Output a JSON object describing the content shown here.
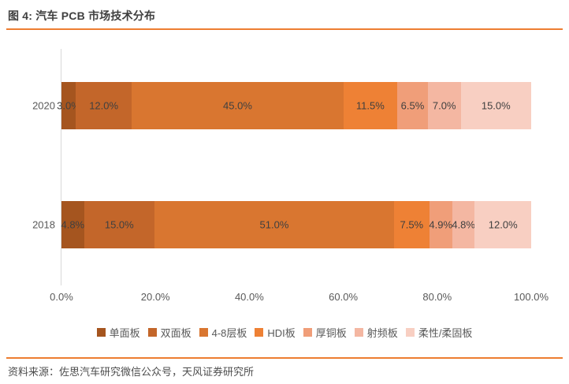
{
  "header": {
    "title": "图 4: 汽车 PCB 市场技术分布"
  },
  "footer": {
    "source": "资料来源：佐思汽车研究微信公众号，天风证券研究所"
  },
  "colors": {
    "accent_rule": "#ED7D31",
    "title_text": "#3F3F3F",
    "axis_line": "#D9D9D9",
    "axis_text": "#595959",
    "value_label_text": "#404040",
    "source_text": "#4D4D4D"
  },
  "chart_data": {
    "type": "bar",
    "stacked": true,
    "orientation": "horizontal",
    "categories": [
      "2020",
      "2018"
    ],
    "series": [
      {
        "name": "单面板",
        "color": "#A5551F",
        "values": [
          3.0,
          4.8
        ]
      },
      {
        "name": "双面板",
        "color": "#C3662A",
        "values": [
          12.0,
          15.0
        ]
      },
      {
        "name": "4-8层板",
        "color": "#D97630",
        "values": [
          45.0,
          51.0
        ]
      },
      {
        "name": "HDI板",
        "color": "#EE8135",
        "values": [
          11.5,
          7.5
        ]
      },
      {
        "name": "厚铜板",
        "color": "#F09E79",
        "values": [
          6.5,
          4.9
        ]
      },
      {
        "name": "射频板",
        "color": "#F4B7A2",
        "values": [
          7.0,
          4.8
        ]
      },
      {
        "name": "柔性/柔固板",
        "color": "#F8CFC2",
        "values": [
          15.0,
          12.0
        ]
      }
    ],
    "x_ticks": [
      "0.0%",
      "20.0%",
      "40.0%",
      "60.0%",
      "80.0%",
      "100.0%"
    ],
    "xlim": [
      0,
      100
    ],
    "value_label_format": "one-decimal-percent",
    "grid": false,
    "legend_position": "bottom"
  }
}
